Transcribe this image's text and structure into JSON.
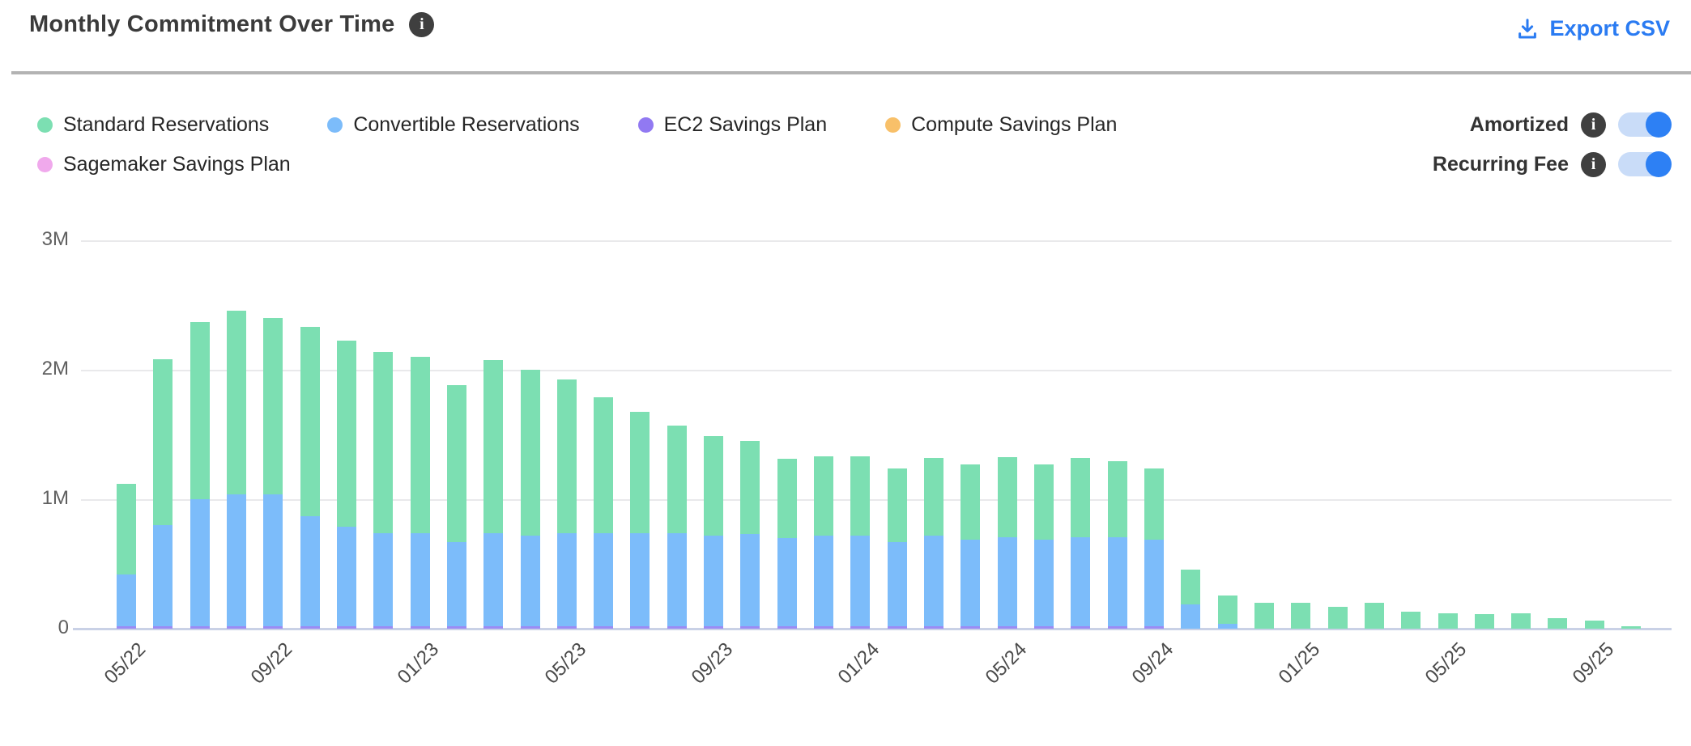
{
  "header": {
    "title": "Monthly Commitment Over Time",
    "title_info_icon": "i",
    "export_label": "Export CSV"
  },
  "controls": {
    "toggles": [
      {
        "label": "Amortized",
        "info_icon": "i",
        "state": "on"
      },
      {
        "label": "Recurring Fee",
        "info_icon": "i",
        "state": "on"
      }
    ],
    "toggle_on_color": "#2d80f4",
    "toggle_track_color": "#c9dcf8"
  },
  "legend": {
    "rows": [
      [
        {
          "name": "Standard Reservations",
          "color": "#7cdfb2"
        },
        {
          "name": "Convertible Reservations",
          "color": "#7cbcfa"
        },
        {
          "name": "EC2 Savings Plan",
          "color": "#9179f2"
        },
        {
          "name": "Compute Savings Plan",
          "color": "#f8c069"
        }
      ],
      [
        {
          "name": "Sagemaker Savings Plan",
          "color": "#f0a9ec"
        }
      ]
    ]
  },
  "chart_data": {
    "type": "bar",
    "stacked": true,
    "unit": "M",
    "x": [
      "05/22",
      "06/22",
      "07/22",
      "08/22",
      "09/22",
      "10/22",
      "11/22",
      "12/22",
      "01/23",
      "02/23",
      "03/23",
      "04/23",
      "05/23",
      "06/23",
      "07/23",
      "08/23",
      "09/23",
      "10/23",
      "11/23",
      "12/23",
      "01/24",
      "02/24",
      "03/24",
      "04/24",
      "05/24",
      "06/24",
      "07/24",
      "08/24",
      "09/24",
      "10/24",
      "11/24",
      "12/24",
      "01/25",
      "02/25",
      "03/25",
      "04/25",
      "05/25",
      "06/25",
      "07/25",
      "08/25",
      "09/25",
      "10/25"
    ],
    "x_tick_every": 4,
    "x_tick_labels": [
      "05/22",
      "09/22",
      "01/23",
      "05/23",
      "09/23",
      "01/24",
      "05/24",
      "09/24",
      "01/25",
      "05/25",
      "09/25"
    ],
    "y_ticks": [
      "3M",
      "2M",
      "1M",
      "0"
    ],
    "ylim": [
      0,
      3375000
    ],
    "grid": true,
    "series": [
      {
        "name": "EC2 Savings Plan",
        "color": "#9b8bf4",
        "values": [
          0.02,
          0.02,
          0.02,
          0.02,
          0.02,
          0.02,
          0.02,
          0.02,
          0.02,
          0.02,
          0.02,
          0.02,
          0.02,
          0.02,
          0.02,
          0.02,
          0.02,
          0.02,
          0.02,
          0.02,
          0.02,
          0.02,
          0.02,
          0.02,
          0.02,
          0.02,
          0.02,
          0.02,
          0.02,
          0,
          0,
          0,
          0,
          0,
          0,
          0,
          0,
          0,
          0,
          0,
          0,
          0
        ]
      },
      {
        "name": "Convertible Reservations",
        "color": "#7cbcfa",
        "values": [
          0.4,
          0.78,
          0.98,
          1.02,
          1.02,
          0.85,
          0.77,
          0.72,
          0.72,
          0.65,
          0.72,
          0.7,
          0.72,
          0.72,
          0.72,
          0.72,
          0.7,
          0.71,
          0.68,
          0.7,
          0.7,
          0.65,
          0.7,
          0.67,
          0.69,
          0.67,
          0.69,
          0.69,
          0.67,
          0.19,
          0.04,
          0,
          0,
          0,
          0,
          0,
          0,
          0,
          0,
          0,
          0,
          0
        ]
      },
      {
        "name": "Standard Reservations",
        "color": "#7cdfb2",
        "values": [
          0.7,
          1.28,
          1.37,
          1.42,
          1.36,
          1.46,
          1.44,
          1.4,
          1.36,
          1.21,
          1.34,
          1.28,
          1.19,
          1.05,
          0.94,
          0.83,
          0.77,
          0.72,
          0.61,
          0.61,
          0.61,
          0.57,
          0.6,
          0.58,
          0.62,
          0.58,
          0.61,
          0.59,
          0.55,
          0.27,
          0.22,
          0.2,
          0.2,
          0.17,
          0.2,
          0.13,
          0.12,
          0.11,
          0.12,
          0.08,
          0.06,
          0.02
        ]
      },
      {
        "name": "Compute Savings Plan",
        "color": "#f8c069",
        "values": [
          0,
          0,
          0,
          0,
          0,
          0,
          0,
          0,
          0,
          0,
          0,
          0,
          0,
          0,
          0,
          0,
          0,
          0,
          0,
          0,
          0,
          0,
          0,
          0,
          0,
          0,
          0,
          0,
          0,
          0,
          0,
          0,
          0,
          0,
          0,
          0,
          0,
          0,
          0,
          0,
          0,
          0
        ]
      },
      {
        "name": "Sagemaker Savings Plan",
        "color": "#f0a9ec",
        "values": [
          0,
          0,
          0,
          0,
          0,
          0,
          0,
          0,
          0,
          0,
          0,
          0,
          0,
          0,
          0,
          0,
          0,
          0,
          0,
          0,
          0,
          0,
          0,
          0,
          0,
          0,
          0,
          0,
          0,
          0,
          0,
          0,
          0,
          0,
          0,
          0,
          0,
          0,
          0,
          0,
          0,
          0
        ]
      }
    ]
  }
}
